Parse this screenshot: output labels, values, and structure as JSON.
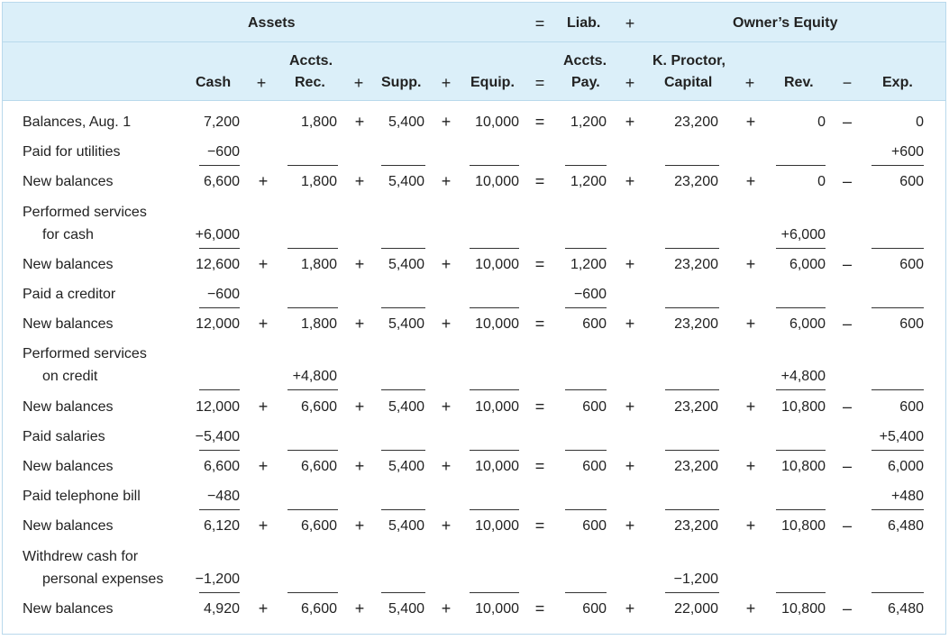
{
  "group_headers": {
    "assets": "Assets",
    "eq1": "=",
    "liab": "Liab.",
    "plus1": "+",
    "owners_equity": "Owner’s Equity"
  },
  "column_headers": {
    "cash": "Cash",
    "plus_a": "+",
    "accts_rec_1": "Accts.",
    "accts_rec_2": "Rec.",
    "plus_b": "+",
    "supp": "Supp.",
    "plus_c": "+",
    "equip": "Equip.",
    "eq": "=",
    "accts_pay_1": "Accts.",
    "accts_pay_2": "Pay.",
    "plus_d": "+",
    "capital_1": "K. Proctor,",
    "capital_2": "Capital",
    "plus_e": "+",
    "rev": "Rev.",
    "minus": "−",
    "exp": "Exp."
  },
  "rows": [
    {
      "label": [
        "Balances, Aug. 1"
      ],
      "kind": "bal",
      "cash": "7,200",
      "rec": "1,800",
      "supp": "5,400",
      "equip": "10,000",
      "pay": "1,200",
      "cap": "23,200",
      "rev": "0",
      "exp": "0",
      "ops": {
        "p1": "",
        "p2": "+",
        "p3": "+",
        "eq": "=",
        "p4": "+",
        "p5": "+",
        "m": "–"
      }
    },
    {
      "label": [
        "Paid for utilities"
      ],
      "kind": "txn",
      "cash": "−600",
      "rec": "",
      "supp": "",
      "equip": "",
      "pay": "",
      "cap": "",
      "rev": "",
      "exp": "+600"
    },
    {
      "label": [
        "New balances"
      ],
      "kind": "bal",
      "cash": "6,600",
      "rec": "1,800",
      "supp": "5,400",
      "equip": "10,000",
      "pay": "1,200",
      "cap": "23,200",
      "rev": "0",
      "exp": "600",
      "ops": {
        "p1": "+",
        "p2": "+",
        "p3": "+",
        "eq": "=",
        "p4": "+",
        "p5": "+",
        "m": "–"
      }
    },
    {
      "label": [
        "Performed services",
        "for cash"
      ],
      "kind": "txn",
      "cash": "+6,000",
      "rec": "",
      "supp": "",
      "equip": "",
      "pay": "",
      "cap": "",
      "rev": "+6,000",
      "exp": ""
    },
    {
      "label": [
        "New balances"
      ],
      "kind": "bal",
      "cash": "12,600",
      "rec": "1,800",
      "supp": "5,400",
      "equip": "10,000",
      "pay": "1,200",
      "cap": "23,200",
      "rev": "6,000",
      "exp": "600",
      "ops": {
        "p1": "+",
        "p2": "+",
        "p3": "+",
        "eq": "=",
        "p4": "+",
        "p5": "+",
        "m": "–"
      }
    },
    {
      "label": [
        "Paid a creditor"
      ],
      "kind": "txn",
      "cash": "−600",
      "rec": "",
      "supp": "",
      "equip": "",
      "pay": "−600",
      "cap": "",
      "rev": "",
      "exp": ""
    },
    {
      "label": [
        "New balances"
      ],
      "kind": "bal",
      "cash": "12,000",
      "rec": "1,800",
      "supp": "5,400",
      "equip": "10,000",
      "pay": "600",
      "cap": "23,200",
      "rev": "6,000",
      "exp": "600",
      "ops": {
        "p1": "+",
        "p2": "+",
        "p3": "+",
        "eq": "=",
        "p4": "+",
        "p5": "+",
        "m": "–"
      }
    },
    {
      "label": [
        "Performed services",
        "on credit"
      ],
      "kind": "txn",
      "cash": "",
      "rec": "+4,800",
      "supp": "",
      "equip": "",
      "pay": "",
      "cap": "",
      "rev": "+4,800",
      "exp": ""
    },
    {
      "label": [
        "New balances"
      ],
      "kind": "bal",
      "cash": "12,000",
      "rec": "6,600",
      "supp": "5,400",
      "equip": "10,000",
      "pay": "600",
      "cap": "23,200",
      "rev": "10,800",
      "exp": "600",
      "ops": {
        "p1": "+",
        "p2": "+",
        "p3": "+",
        "eq": "=",
        "p4": "+",
        "p5": "+",
        "m": "–"
      }
    },
    {
      "label": [
        "Paid salaries"
      ],
      "kind": "txn",
      "cash": "−5,400",
      "rec": "",
      "supp": "",
      "equip": "",
      "pay": "",
      "cap": "",
      "rev": "",
      "exp": "+5,400"
    },
    {
      "label": [
        "New balances"
      ],
      "kind": "bal",
      "cash": "6,600",
      "rec": "6,600",
      "supp": "5,400",
      "equip": "10,000",
      "pay": "600",
      "cap": "23,200",
      "rev": "10,800",
      "exp": "6,000",
      "ops": {
        "p1": "+",
        "p2": "+",
        "p3": "+",
        "eq": "=",
        "p4": "+",
        "p5": "+",
        "m": "–"
      }
    },
    {
      "label": [
        "Paid telephone bill"
      ],
      "kind": "txn",
      "cash": "−480",
      "rec": "",
      "supp": "",
      "equip": "",
      "pay": "",
      "cap": "",
      "rev": "",
      "exp": "+480"
    },
    {
      "label": [
        "New balances"
      ],
      "kind": "bal",
      "cash": "6,120",
      "rec": "6,600",
      "supp": "5,400",
      "equip": "10,000",
      "pay": "600",
      "cap": "23,200",
      "rev": "10,800",
      "exp": "6,480",
      "ops": {
        "p1": "+",
        "p2": "+",
        "p3": "+",
        "eq": "=",
        "p4": "+",
        "p5": "+",
        "m": "–"
      }
    },
    {
      "label": [
        "Withdrew cash for",
        "personal expenses"
      ],
      "kind": "txn",
      "cash": "−1,200",
      "rec": "",
      "supp": "",
      "equip": "",
      "pay": "",
      "cap": "−1,200",
      "rev": "",
      "exp": ""
    },
    {
      "label": [
        "New balances"
      ],
      "kind": "bal",
      "cash": "4,920",
      "rec": "6,600",
      "supp": "5,400",
      "equip": "10,000",
      "pay": "600",
      "cap": "22,000",
      "rev": "10,800",
      "exp": "6,480",
      "ops": {
        "p1": "+",
        "p2": "+",
        "p3": "+",
        "eq": "=",
        "p4": "+",
        "p5": "+",
        "m": "–"
      }
    }
  ]
}
